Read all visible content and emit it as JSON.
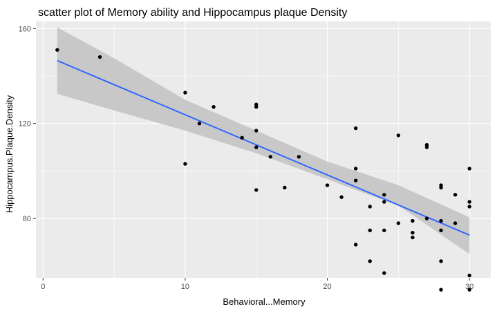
{
  "chart_data": {
    "type": "scatter",
    "title": "scatter plot of Memory ability and Hippocampus plaque Density",
    "xlabel": "Behavioral...Memory",
    "ylabel": "Hippocampus.Plaque.Density",
    "xlim": [
      -0.5,
      31.5
    ],
    "ylim": [
      55,
      163
    ],
    "x_ticks": [
      0,
      10,
      20,
      30
    ],
    "y_ticks": [
      80,
      120,
      160
    ],
    "grid": true,
    "legend": "none",
    "colors": {
      "panel": "#ebebeb",
      "grid": "#ffffff",
      "points": "#000000",
      "trend_line": "#3366ff",
      "confidence_band": "#c4c4c4"
    },
    "points": [
      {
        "x": 1,
        "y": 151
      },
      {
        "x": 4,
        "y": 148
      },
      {
        "x": 10,
        "y": 133
      },
      {
        "x": 10,
        "y": 103
      },
      {
        "x": 11,
        "y": 120
      },
      {
        "x": 12,
        "y": 127
      },
      {
        "x": 14,
        "y": 114
      },
      {
        "x": 15,
        "y": 128
      },
      {
        "x": 15,
        "y": 127
      },
      {
        "x": 15,
        "y": 117
      },
      {
        "x": 15,
        "y": 110
      },
      {
        "x": 15,
        "y": 92
      },
      {
        "x": 16,
        "y": 106
      },
      {
        "x": 17,
        "y": 93
      },
      {
        "x": 18,
        "y": 106
      },
      {
        "x": 20,
        "y": 94
      },
      {
        "x": 21,
        "y": 89
      },
      {
        "x": 22,
        "y": 118
      },
      {
        "x": 22,
        "y": 101
      },
      {
        "x": 22,
        "y": 96
      },
      {
        "x": 22,
        "y": 69
      },
      {
        "x": 23,
        "y": 85
      },
      {
        "x": 23,
        "y": 75
      },
      {
        "x": 23,
        "y": 62
      },
      {
        "x": 24,
        "y": 90
      },
      {
        "x": 24,
        "y": 87
      },
      {
        "x": 24,
        "y": 75
      },
      {
        "x": 24,
        "y": 57
      },
      {
        "x": 25,
        "y": 115
      },
      {
        "x": 25,
        "y": 78
      },
      {
        "x": 26,
        "y": 79
      },
      {
        "x": 26,
        "y": 74
      },
      {
        "x": 26,
        "y": 72
      },
      {
        "x": 27,
        "y": 111
      },
      {
        "x": 27,
        "y": 110
      },
      {
        "x": 27,
        "y": 80
      },
      {
        "x": 28,
        "y": 94
      },
      {
        "x": 28,
        "y": 93
      },
      {
        "x": 28,
        "y": 79
      },
      {
        "x": 28,
        "y": 75
      },
      {
        "x": 28,
        "y": 62
      },
      {
        "x": 28,
        "y": 50
      },
      {
        "x": 29,
        "y": 90
      },
      {
        "x": 29,
        "y": 78
      },
      {
        "x": 30,
        "y": 101
      },
      {
        "x": 30,
        "y": 87
      },
      {
        "x": 30,
        "y": 85
      },
      {
        "x": 30,
        "y": 56
      },
      {
        "x": 30,
        "y": 50
      }
    ],
    "trend_line": {
      "x": [
        1,
        30
      ],
      "y": [
        146.5,
        73
      ]
    },
    "confidence_band": {
      "x": [
        1,
        5,
        10,
        15,
        20,
        22,
        25,
        30
      ],
      "lower": [
        132.5,
        125.5,
        117,
        107.5,
        96.5,
        92,
        85.5,
        65
      ],
      "upper": [
        160.5,
        147.5,
        130,
        117,
        104,
        100,
        94,
        80.5
      ]
    }
  }
}
